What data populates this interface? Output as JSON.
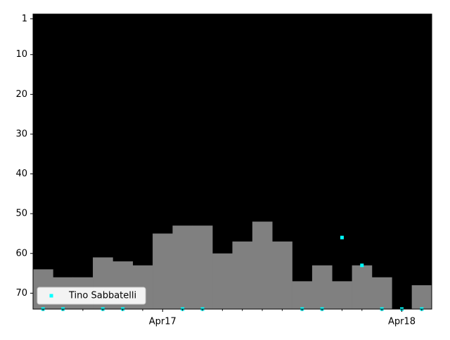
{
  "chart_data": {
    "type": "bar",
    "categories": [
      null,
      null,
      null,
      null,
      null,
      null,
      "Apr17",
      null,
      null,
      null,
      null,
      null,
      null,
      null,
      null,
      null,
      null,
      null,
      "Apr18",
      null
    ],
    "values": [
      64,
      66,
      66,
      61,
      62,
      63,
      55,
      53,
      53,
      60,
      57,
      52,
      57,
      67,
      63,
      67,
      63,
      66,
      null,
      68
    ],
    "color": "#808080",
    "series": [
      {
        "name": "Tino Sabbatelli",
        "color": "#00ffff",
        "values": [
          74,
          74,
          null,
          74,
          74,
          null,
          null,
          74,
          74,
          null,
          null,
          null,
          null,
          74,
          74,
          56,
          63,
          74,
          74,
          74
        ]
      }
    ],
    "ylim": [
      74,
      -0.2
    ],
    "yticks": [
      1,
      10,
      20,
      30,
      40,
      50,
      60,
      70
    ],
    "legend": "lower left",
    "background": "#000000"
  }
}
